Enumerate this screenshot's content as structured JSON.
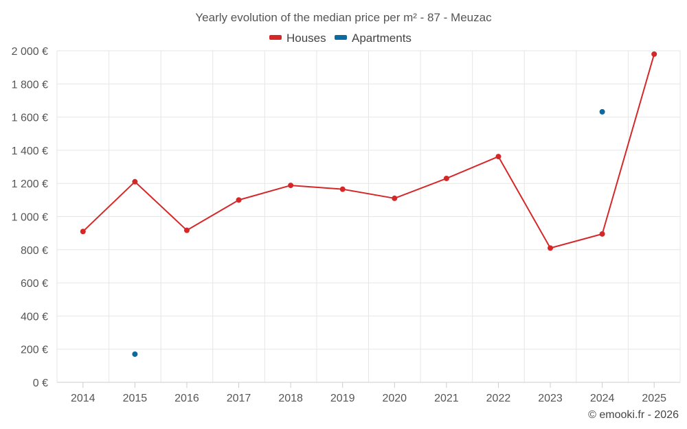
{
  "chart_data": {
    "type": "line",
    "title": "Yearly evolution of the median price per m² - 87 - Meuzac",
    "categories": [
      "2014",
      "2015",
      "2016",
      "2017",
      "2018",
      "2019",
      "2020",
      "2021",
      "2022",
      "2023",
      "2024",
      "2025"
    ],
    "ylim": [
      0,
      2000
    ],
    "yticks": [
      0,
      200,
      400,
      600,
      800,
      1000,
      1200,
      1400,
      1600,
      1800,
      2000
    ],
    "ytick_labels": [
      "0 €",
      "200 €",
      "400 €",
      "600 €",
      "800 €",
      "1 000 €",
      "1 200 €",
      "1 400 €",
      "1 600 €",
      "1 800 €",
      "2 000 €"
    ],
    "grid": true,
    "legend_position": "top-center",
    "series": [
      {
        "name": "Houses",
        "color": "#d62728",
        "line": true,
        "values": [
          910,
          1210,
          917,
          1100,
          1188,
          1165,
          1110,
          1230,
          1362,
          810,
          895,
          1980
        ]
      },
      {
        "name": "Apartments",
        "color": "#0b6a9f",
        "line": false,
        "values": [
          null,
          170,
          null,
          null,
          null,
          null,
          null,
          null,
          null,
          null,
          1632,
          null
        ]
      }
    ],
    "credit": "© emooki.fr - 2026"
  }
}
